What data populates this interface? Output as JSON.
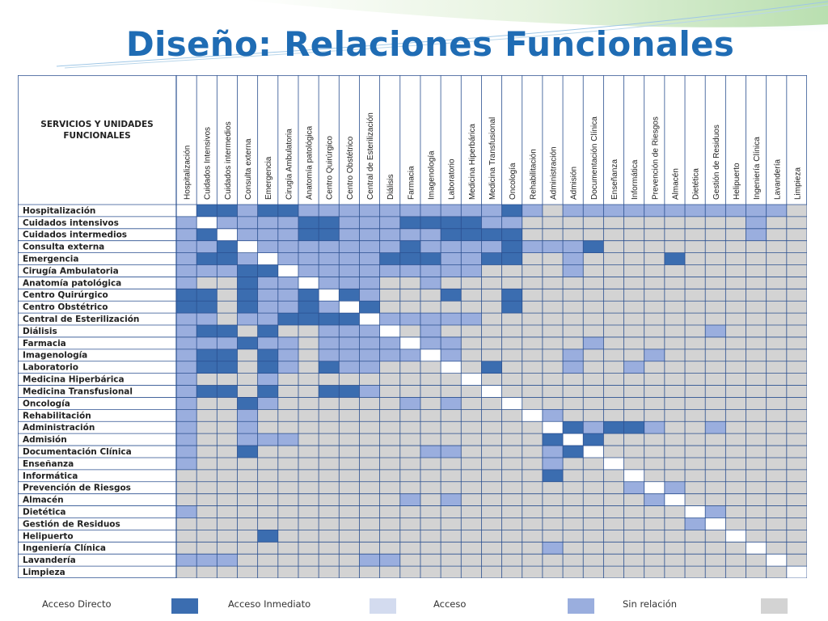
{
  "title": "Diseño: Relaciones Funcionales",
  "table": {
    "corner_label": "SERVICIOS Y UNIDADES FUNCIONALES",
    "columns": [
      "Hospitalización",
      "Cuidados Intensivos",
      "Cuidados intermedios",
      "Consulta externa",
      "Emergencia",
      "Cirugía Ambulatoria",
      "Anatomía patológica",
      "Centro Quirúrgico",
      "Centro Obstétrico",
      "Central de Esterilización",
      "Diálisis",
      "Farmacia",
      "Imagenología",
      "Laboratorio",
      "Medicina Hiperbárica",
      "Medicina Transfusional",
      "Oncología",
      "Rehabilitación",
      "Administración",
      "Admisión",
      "Documentación Clínica",
      "Enseñanza",
      "Informática",
      "Prevención de Riesgos",
      "Almacén",
      "Dietética",
      "Gestión de Residuos",
      "Helipuerto",
      "Ingeniería Clínica",
      "Lavandería",
      "Limpieza"
    ],
    "rows": [
      "Hospitalización",
      "Cuidados intensivos",
      "Cuidados intermedios",
      "Consulta externa",
      "Emergencia",
      "Cirugía Ambulatoria",
      "Anatomía patológica",
      "Centro Quirúrgico",
      "Centro Obstétrico",
      "Central de Esterilización",
      "Diálisis",
      "Farmacia",
      "Imagenología",
      "Laboratorio",
      "Medicina Hiperbárica",
      "Medicina Transfusional",
      "Oncología",
      "Rehabilitación",
      "Administración",
      "Admisión",
      "Documentación Clínica",
      "Enseñanza",
      "Informática",
      "Prevención de Riesgos",
      "Almacén",
      "Dietética",
      "Gestión de Residuos",
      "Helipuerto",
      "Ingeniería Clínica",
      "Lavandería",
      "Limpieza"
    ],
    "cells_legend": "D = Acceso Directo, I = Acceso Inmediato, A = Acceso, N = Sin relación, X = diagonal",
    "cells": [
      "XDDADDAAAAAAAAAADANAAAAAAAAAAAN",
      "AXAAAADDAAADDDDAANNNNNNNNNNNAN",
      "ADXAAADDAAAAADDDDNNNNNNNNNNNAN",
      "AADXAAAAAAADAAAADAAADNNNNNNNNN",
      "ADDAXAAAAADDDAADDNNANNNNDNNNNN",
      "AAADDXAAAAAAAAANNNNANNNNNNNNNN",
      "ANNDAAXAAANNANNNNNNNNNNNNNNNNN",
      "DDNDAADXDANNNDNNDNNNNNNNNNNNNN",
      "DDNDAADAXDNNNNNNDNNNNNNNNNNNNN",
      "AANAADDDDXAAAAANNNNNNNNNNNNNNN",
      "ADDNDNNAAAXNANNNNNNNNNNNNNANNN",
      "AAADAANAAAAXAANNNNNNANNNNNNNNN",
      "ADDNDANAAAAAXANNNNNANNNANNNNNN",
      "ADDNDANDAANNNXNDNNNANNANNNNNNN",
      "ANNNANNNNNNNNNXNNNNNNNNNNNNNNN",
      "ADDNDNNDDANNNNNXNNNNNNNNNNNNNN",
      "ANNDANNNNNNANANNXNNNNNNNNNNNNN",
      "ANNANNNNNNNNNNNNNXANNNNNNNNNNN",
      "ANNANNNNNNNNNNNNNNXDADDANNANNN",
      "ANNAAANNNNNNNNNNNNDXDNNNNNNNNN",
      "ANNDNNNNNNNNAANNNNADXNNNNNNNNN",
      "ANNNNNNNNNNNNNNNNNANNXNNNNNNNN",
      "NNNNNNNNNNNNNNNNNNDNNNXNNNNNNN",
      "NNNNNNNNNNNNNNNNNNNNNNAXANNNNN",
      "NNNNNNNNNNNANANNNNNNNNNAXNNNNN",
      "ANNNNNNNNNNNNNNNNNNNNNNNNXANNN",
      "NNNNNNNNNNNNNNNNNNNNNNNNNAXNNN",
      "NNNNDNNNNNNNNNNNNNNNNNNNNNNXNN",
      "NNNNNNNNNNNNNNNNNNANNNNNNNNNXN",
      "AAANNNNNNAANNNNNNNNNNNNNNNNNNX",
      "NNNNNNNNNNNNNNNNNNNNNNNNNNNNNNX"
    ]
  },
  "legend": [
    {
      "label": "Acceso Directo",
      "color": "#3b6db0"
    },
    {
      "label": "Acceso Inmediato",
      "color": "#d3dbef"
    },
    {
      "label": "Acceso",
      "color": "#9aaede"
    },
    {
      "label": "Sin relación",
      "color": "#d3d3d3"
    }
  ],
  "colors": {
    "title": "#1f6cb4",
    "border": "#2a4f8f",
    "diagonal": "#ffffff"
  }
}
